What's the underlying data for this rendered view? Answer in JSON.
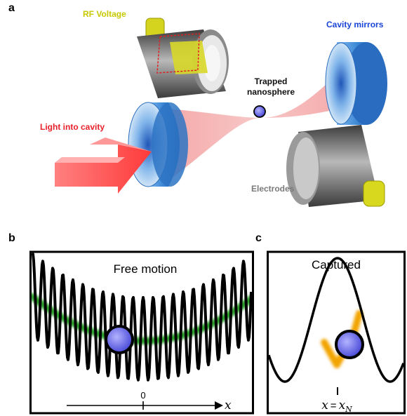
{
  "panel_a": {
    "letter": "a",
    "labels": {
      "rf_voltage": "RF Voltage",
      "cavity_mirrors": "Cavity mirrors",
      "trapped_line1": "Trapped",
      "trapped_line2": "nanosphere",
      "light_into_cavity": "Light into cavity",
      "electrodes": "Electrodes"
    }
  },
  "panel_b": {
    "letter": "b",
    "title": "Free motion",
    "axis_origin": "0",
    "axis_var": "x"
  },
  "panel_c": {
    "letter": "c",
    "title": "Captured",
    "position_lhs": "x",
    "position_eq": "=",
    "position_rhs": "x",
    "position_sub": "N"
  },
  "colors": {
    "rf_label": "#c8c800",
    "mirror_label": "#1a44d8",
    "light_label": "#e8202a",
    "electrode_label": "#7a7a7a",
    "beam": "#f06a6a",
    "mirror": "#2f77c8",
    "electrode": "#6e6e6e",
    "electrode_pin": "#d8d820",
    "particle": "#6a6ae8",
    "wave": "#000000",
    "envelope_green": "#1a9a1a",
    "captured_orange": "#f2a400"
  }
}
